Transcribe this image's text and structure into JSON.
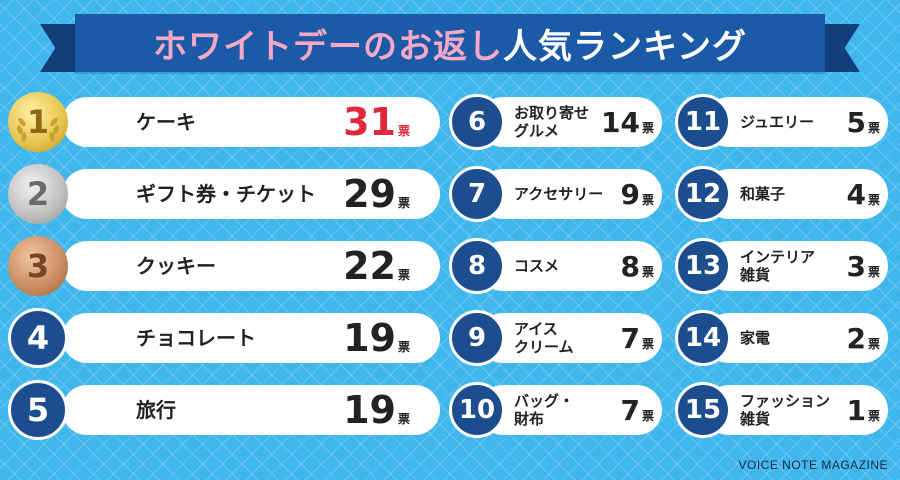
{
  "title": {
    "pink": "ホワイトデーのお返し",
    "white": "人気ランキング"
  },
  "chart_data": {
    "type": "table",
    "unit": "票",
    "rows": [
      {
        "rank": "1",
        "item": "ケーキ",
        "votes": 31
      },
      {
        "rank": "2",
        "item": "ギフト券・チケット",
        "votes": 29
      },
      {
        "rank": "3",
        "item": "クッキー",
        "votes": 22
      },
      {
        "rank": "4",
        "item": "チョコレート",
        "votes": 19
      },
      {
        "rank": "5",
        "item": "旅行",
        "votes": 19
      },
      {
        "rank": "6",
        "item": "お取り寄せ\nグルメ",
        "votes": 14
      },
      {
        "rank": "7",
        "item": "アクセサリー",
        "votes": 9
      },
      {
        "rank": "8",
        "item": "コスメ",
        "votes": 8
      },
      {
        "rank": "9",
        "item": "アイス\nクリーム",
        "votes": 7
      },
      {
        "rank": "10",
        "item": "バッグ・\n財布",
        "votes": 7
      },
      {
        "rank": "11",
        "item": "ジュエリー",
        "votes": 5
      },
      {
        "rank": "12",
        "item": "和菓子",
        "votes": 4
      },
      {
        "rank": "13",
        "item": "インテリア\n雑貨",
        "votes": 3
      },
      {
        "rank": "14",
        "item": "家電",
        "votes": 2
      },
      {
        "rank": "15",
        "item": "ファッション\n雑貨",
        "votes": 1
      }
    ]
  },
  "colors": {
    "background": "#3fb6ec",
    "ribbon": "#1a5aa6",
    "badge": "#1b4d8f",
    "title_pink": "#f7a8c6",
    "highlight": "#e02a3c"
  },
  "footer": "VOICE NOTE MAGAZINE"
}
